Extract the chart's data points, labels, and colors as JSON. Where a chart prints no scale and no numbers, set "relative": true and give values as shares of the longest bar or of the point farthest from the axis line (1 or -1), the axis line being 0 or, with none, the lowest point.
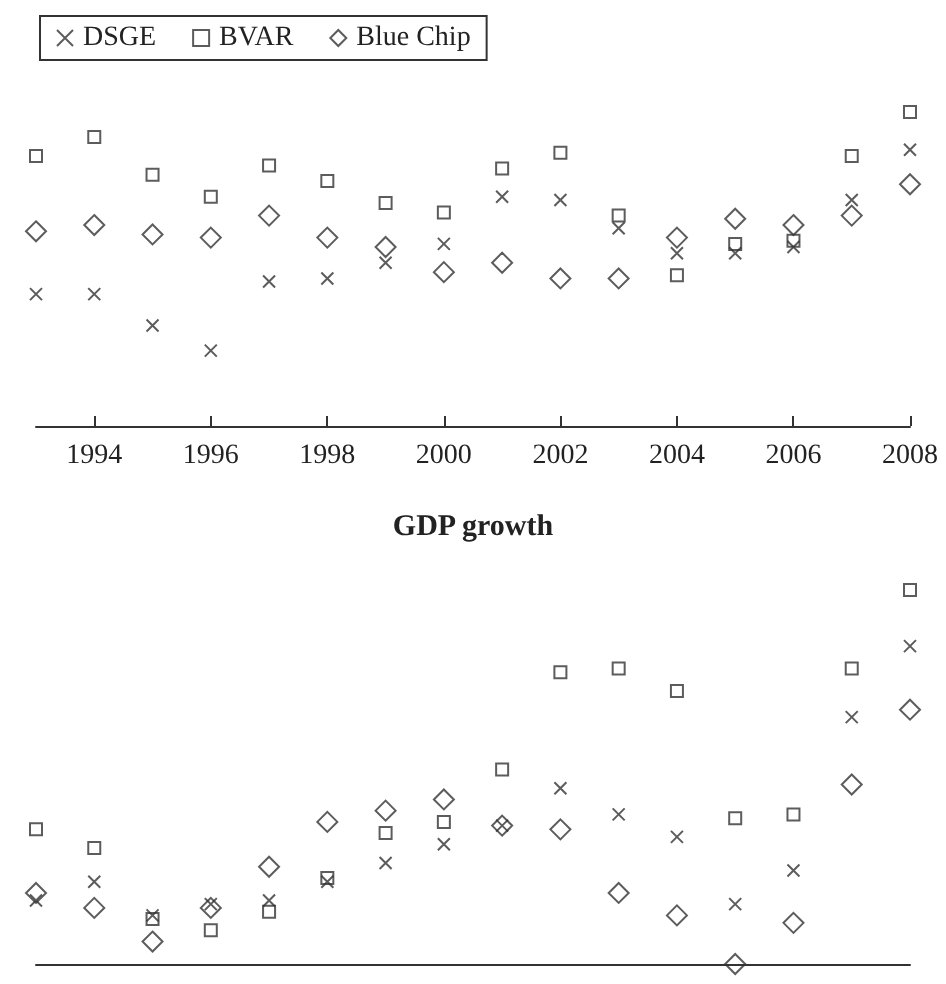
{
  "chart_data": [
    {
      "type": "scatter",
      "relative": true,
      "x": [
        1993,
        1994,
        1995,
        1996,
        1997,
        1998,
        1999,
        2000,
        2001,
        2002,
        2003,
        2004,
        2005,
        2006,
        2007,
        2008
      ],
      "xlim": [
        1993,
        2008
      ],
      "xticks": [
        1994,
        1996,
        1998,
        2000,
        2002,
        2004,
        2006,
        2008
      ],
      "legend": "top left",
      "series": [
        {
          "name": "DSGE",
          "color": "#333333",
          "marker": "cross",
          "values": [
            0.42,
            0.42,
            0.32,
            0.24,
            0.46,
            0.47,
            0.52,
            0.58,
            0.73,
            0.72,
            0.63,
            0.55,
            0.55,
            0.57,
            0.72,
            0.88
          ]
        },
        {
          "name": "BVAR",
          "color": "#333333",
          "marker": "square",
          "values": [
            0.86,
            0.92,
            0.8,
            0.73,
            0.83,
            0.78,
            0.71,
            0.68,
            0.82,
            0.87,
            0.67,
            0.48,
            0.58,
            0.59,
            0.86,
            1
          ]
        },
        {
          "name": "Blue Chip",
          "color": "#333333",
          "marker": "diamond",
          "values": [
            0.62,
            0.64,
            0.61,
            0.6,
            0.67,
            0.6,
            0.57,
            0.49,
            0.52,
            0.47,
            0.47,
            0.6,
            0.66,
            0.64,
            0.67,
            0.77
          ]
        }
      ]
    },
    {
      "type": "scatter",
      "relative": true,
      "title": "GDP growth",
      "tick_labels": false,
      "x": [
        1993,
        1994,
        1995,
        1996,
        1997,
        1998,
        1999,
        2000,
        2001,
        2002,
        2003,
        2004,
        2005,
        2006,
        2007,
        2008
      ],
      "xlim": [
        1993,
        2008
      ],
      "series": [
        {
          "color": "#333333",
          "marker": "cross",
          "values": [
            0.17,
            0.22,
            0.13,
            0.16,
            0.17,
            0.22,
            0.27,
            0.32,
            0.37,
            0.47,
            0.4,
            0.34,
            0.16,
            0.25,
            0.66,
            0.85
          ]
        },
        {
          "color": "#333333",
          "marker": "square",
          "values": [
            0.36,
            0.31,
            0.12,
            0.09,
            0.14,
            0.23,
            0.35,
            0.38,
            0.52,
            0.78,
            0.79,
            0.73,
            0.39,
            0.4,
            0.79,
            1
          ]
        },
        {
          "color": "#333333",
          "marker": "diamond",
          "values": [
            0.19,
            0.15,
            0.06,
            0.15,
            0.26,
            0.38,
            0.41,
            0.44,
            0.37,
            0.36,
            0.19,
            0.13,
            0,
            0.11,
            0.48,
            0.68
          ]
        }
      ]
    }
  ]
}
